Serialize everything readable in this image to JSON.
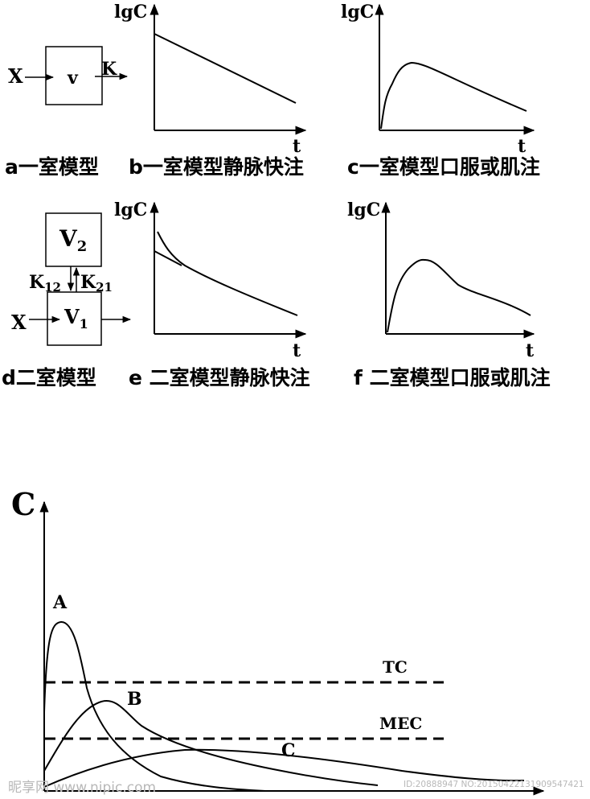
{
  "panels": {
    "a": {
      "caption": "a一室模型",
      "input": "X",
      "box": "v",
      "rate": "K"
    },
    "b": {
      "caption": "b一室模型静脉快注",
      "ylabel": "lgC",
      "xlabel": "t"
    },
    "c": {
      "caption": "c一室模型口服或肌注",
      "ylabel": "lgC",
      "xlabel": "t"
    },
    "d": {
      "caption": "d二室模型",
      "input": "X",
      "box_top": "V",
      "box_top_sub": "2",
      "box_bottom": "V",
      "box_bottom_sub": "1",
      "k12": "K",
      "k12_sub": "12",
      "k21": "K",
      "k21_sub": "21"
    },
    "e": {
      "caption": "e 二室模型静脉快注",
      "ylabel": "lgC",
      "xlabel": "t"
    },
    "f": {
      "caption": "f 二室模型口服或肌注",
      "ylabel": "lgC",
      "xlabel": "t"
    }
  },
  "bottom_chart": {
    "ylabel": "C",
    "curves": [
      "A",
      "B",
      "C"
    ],
    "lines": {
      "tc": "TC",
      "mec": "MEC"
    }
  },
  "watermark": {
    "brand": "昵享网 www.nipic.com",
    "id": "ID:20888947 NO:20150422131909547421"
  }
}
